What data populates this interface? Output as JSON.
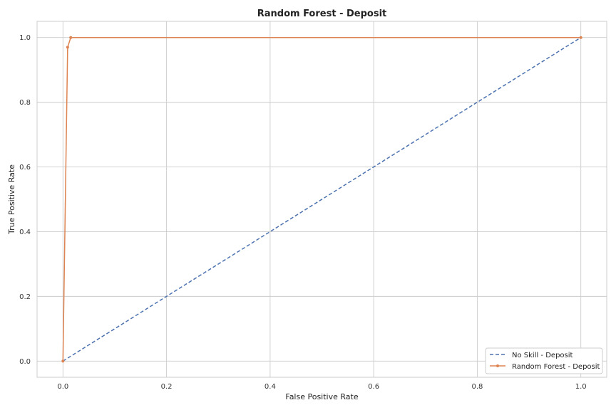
{
  "chart_data": {
    "type": "line",
    "title": "Random Forest - Deposit",
    "xlabel": "False Positive Rate",
    "ylabel": "True Positive Rate",
    "xlim": [
      -0.05,
      1.05
    ],
    "ylim": [
      -0.05,
      1.05
    ],
    "xticks": [
      0.0,
      0.2,
      0.4,
      0.6,
      0.8,
      1.0
    ],
    "xtick_labels": [
      "0.0",
      "0.2",
      "0.4",
      "0.6",
      "0.8",
      "1.0"
    ],
    "yticks": [
      0.0,
      0.2,
      0.4,
      0.6,
      0.8,
      1.0
    ],
    "ytick_labels": [
      "0.0",
      "0.2",
      "0.4",
      "0.6",
      "0.8",
      "1.0"
    ],
    "grid": true,
    "legend_position": "bottom-right",
    "series": [
      {
        "name": "No Skill - Deposit",
        "color": "#4c72b0",
        "style": "dashed",
        "marker": "none",
        "x": [
          0.0,
          1.0
        ],
        "y": [
          0.0,
          1.0
        ]
      },
      {
        "name": "Random Forest - Deposit",
        "color": "#dd8452",
        "style": "solid",
        "marker": "dot",
        "x": [
          0.0,
          0.009,
          0.015,
          1.0
        ],
        "y": [
          0.0,
          0.97,
          1.0,
          1.0
        ]
      }
    ]
  }
}
